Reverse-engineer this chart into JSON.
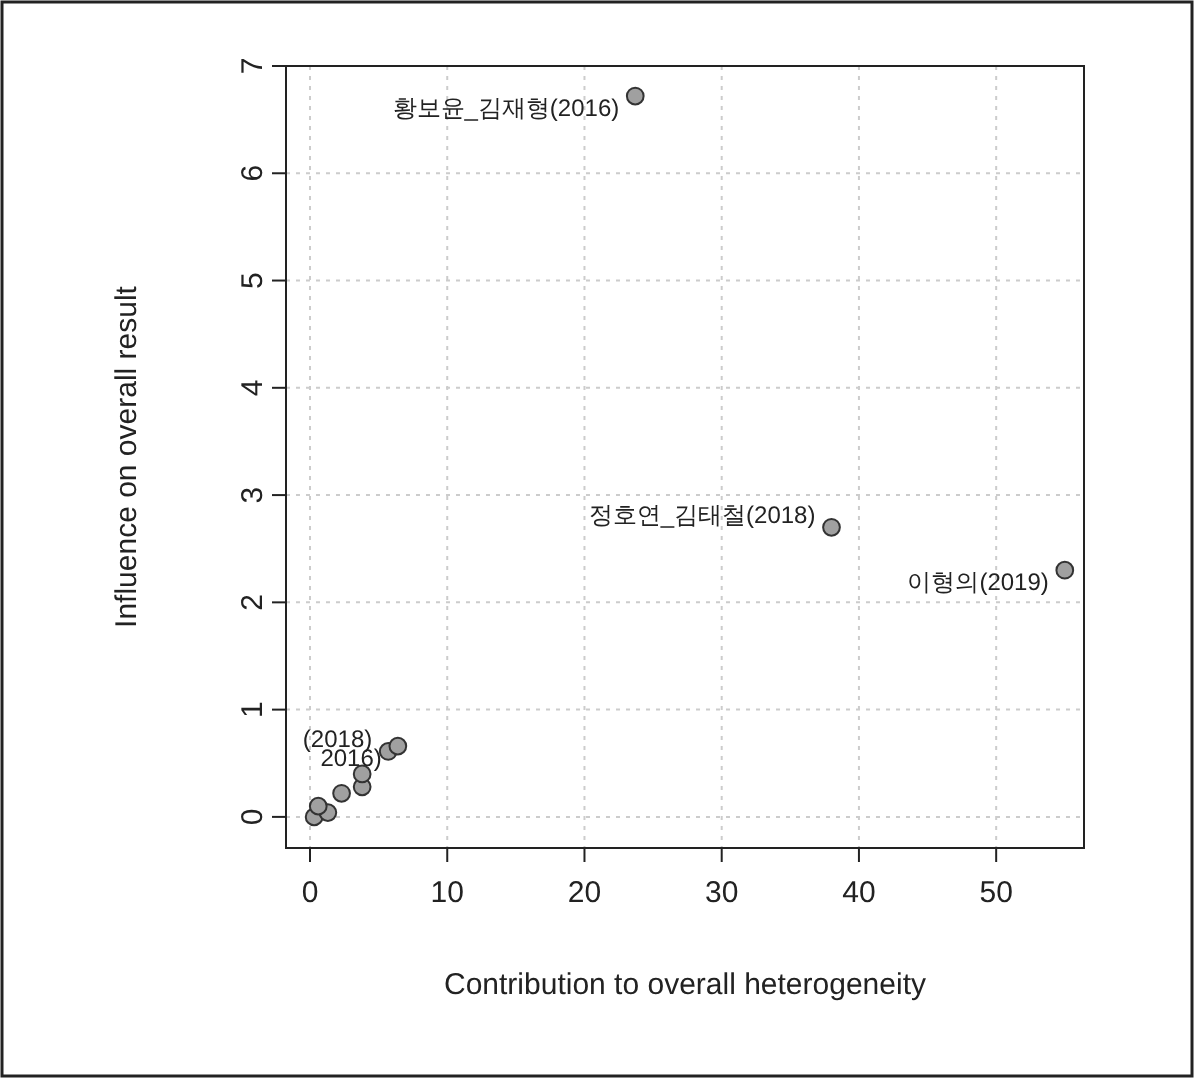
{
  "chart_data": {
    "type": "scatter",
    "xlabel": "Contribution to overall heterogeneity",
    "ylabel": "Influence on overall result",
    "x": [
      23.7,
      38,
      55,
      0.3,
      1.3,
      0.6,
      2.3,
      3.8,
      3.8,
      5.7,
      6.4
    ],
    "series": [
      {
        "color": "#a0a0a0",
        "values": [
          6.72,
          2.7,
          2.3,
          0.0,
          0.04,
          0.1,
          0.22,
          0.28,
          0.4,
          0.61,
          0.66
        ]
      }
    ],
    "xlim": [
      -1.75,
      56.4
    ],
    "ylim": [
      -0.29,
      7
    ],
    "xticks": [
      0,
      10,
      20,
      30,
      40,
      50
    ],
    "yticks": [
      0,
      1,
      2,
      3,
      4,
      5,
      6,
      7
    ],
    "grid": true,
    "marker": "circle",
    "annotations": [
      {
        "text": "황보윤_김재형(2016)",
        "x": 23.7,
        "y": 6.72
      },
      {
        "text": "정호연_김태철(2018)",
        "x": 38,
        "y": 2.7
      },
      {
        "text": "이형의(2019)",
        "x": 55,
        "y": 2.3
      },
      {
        "text": "(2018)",
        "x": 5.7,
        "y": 0.61
      },
      {
        "text": "2016)",
        "x": 6.4,
        "y": 0.66
      }
    ]
  }
}
